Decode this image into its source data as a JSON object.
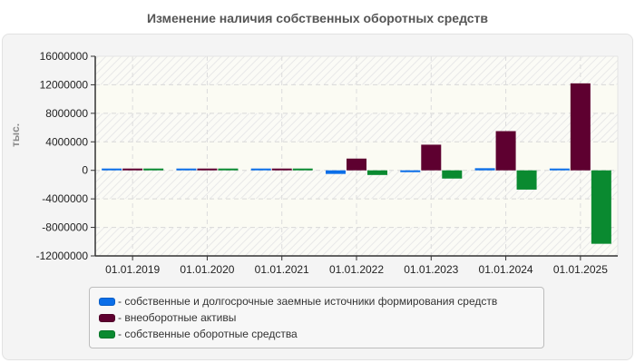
{
  "title": "Изменение наличия собственных оборотных средств",
  "y_axis_label": "тыс.",
  "legend": [
    {
      "label": "- собственные и долгосрочные заемные источники формирования средств",
      "color": "#0b6ee8"
    },
    {
      "label": "- внеоборотные активы",
      "color": "#5e0030"
    },
    {
      "label": "- собственные оборотные средства",
      "color": "#0a8a30"
    }
  ],
  "chart_data": {
    "type": "bar",
    "title": "Изменение наличия собственных оборотных средств",
    "xlabel": "",
    "ylabel": "тыс.",
    "ylim": [
      -12000000,
      16000000
    ],
    "yticks": [
      16000000,
      12000000,
      8000000,
      4000000,
      0,
      -4000000,
      -8000000,
      -12000000
    ],
    "ytick_labels": [
      "16000000",
      "12000000",
      "8000000",
      "4000000",
      "0",
      "-4000000",
      "-8000000",
      "-12000000"
    ],
    "grid": true,
    "legend_position": "bottom",
    "categories": [
      "01.01.2019",
      "01.01.2020",
      "01.01.2021",
      "01.01.2022",
      "01.01.2023",
      "01.01.2024",
      "01.01.2025"
    ],
    "series": [
      {
        "name": "собственные и долгосрочные заемные источники формирования средств",
        "color": "#0b6ee8",
        "values": [
          150000,
          150000,
          150000,
          -500000,
          -200000,
          300000,
          100000
        ]
      },
      {
        "name": "внеоборотные активы",
        "color": "#5e0030",
        "values": [
          150000,
          150000,
          150000,
          1650000,
          3600000,
          5500000,
          12200000
        ]
      },
      {
        "name": "собственные оборотные средства",
        "color": "#0a8a30",
        "values": [
          150000,
          150000,
          150000,
          -650000,
          -1150000,
          -2700000,
          -10300000
        ]
      }
    ]
  }
}
